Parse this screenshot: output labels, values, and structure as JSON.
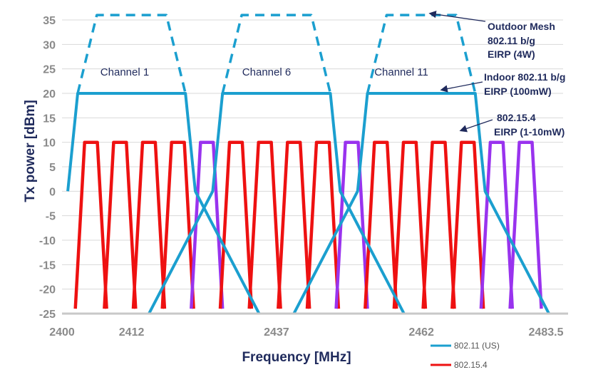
{
  "chart_data": {
    "type": "line",
    "title": "",
    "xlabel": "Frequency [MHz]",
    "ylabel": "Tx power [dBm]",
    "xlim": [
      2400,
      2483.5
    ],
    "ylim": [
      -25,
      35
    ],
    "yticks": [
      35,
      30,
      25,
      20,
      15,
      10,
      5,
      0,
      -5,
      -10,
      -15,
      -20,
      -25
    ],
    "xticks": [
      {
        "value": 2400,
        "label": "2400"
      },
      {
        "value": 2412,
        "label": "2412"
      },
      {
        "value": 2437,
        "label": "2437"
      },
      {
        "value": 2462,
        "label": "2462"
      },
      {
        "value": 2483.5,
        "label": "2483.5"
      }
    ],
    "grid": true,
    "colors": {
      "wifi": "#1b9fcf",
      "zigbee": "#ee1111",
      "zigbee_outside": "#9933ee",
      "text": "#1f2a5c",
      "grid": "#d9d9d9",
      "tick": "#8a8a8a"
    },
    "wifi_channels": [
      {
        "label": "Channel 1",
        "center": 2412
      },
      {
        "label": "Channel 6",
        "center": 2437
      },
      {
        "label": "Channel 11",
        "center": 2462
      }
    ],
    "wifi_mask_offsets": [
      -11,
      -9.3,
      -6,
      6,
      9.3,
      11,
      22
    ],
    "wifi_mask_levels": [
      0,
      20,
      20,
      20,
      20,
      0,
      -25
    ],
    "mesh_offsets": [
      -6,
      6
    ],
    "mesh_level": 36,
    "zigbee_channels": [
      {
        "center": 2405,
        "outside_wifi": false
      },
      {
        "center": 2410,
        "outside_wifi": false
      },
      {
        "center": 2415,
        "outside_wifi": false
      },
      {
        "center": 2420,
        "outside_wifi": false
      },
      {
        "center": 2425,
        "outside_wifi": true
      },
      {
        "center": 2430,
        "outside_wifi": false
      },
      {
        "center": 2435,
        "outside_wifi": false
      },
      {
        "center": 2440,
        "outside_wifi": false
      },
      {
        "center": 2445,
        "outside_wifi": false
      },
      {
        "center": 2450,
        "outside_wifi": true
      },
      {
        "center": 2455,
        "outside_wifi": false
      },
      {
        "center": 2460,
        "outside_wifi": false
      },
      {
        "center": 2465,
        "outside_wifi": false
      },
      {
        "center": 2470,
        "outside_wifi": false
      },
      {
        "center": 2475,
        "outside_wifi": true
      },
      {
        "center": 2480,
        "outside_wifi": true
      }
    ],
    "zigbee_peak": 10,
    "zigbee_floor": -24,
    "annotations": [
      {
        "lines": [
          "Outdoor Mesh",
          "802.11 b/g",
          "EIRP (4W)"
        ]
      },
      {
        "lines": [
          "Indoor 802.11 b/g",
          "EIRP (100mW)"
        ]
      },
      {
        "lines": [
          "802.15.4",
          "EIRP (1-10mW)"
        ]
      }
    ],
    "legend": [
      {
        "name": "802.11 (US)",
        "color": "#1b9fcf"
      },
      {
        "name": "802.15.4",
        "color": "#ee1111"
      }
    ]
  }
}
